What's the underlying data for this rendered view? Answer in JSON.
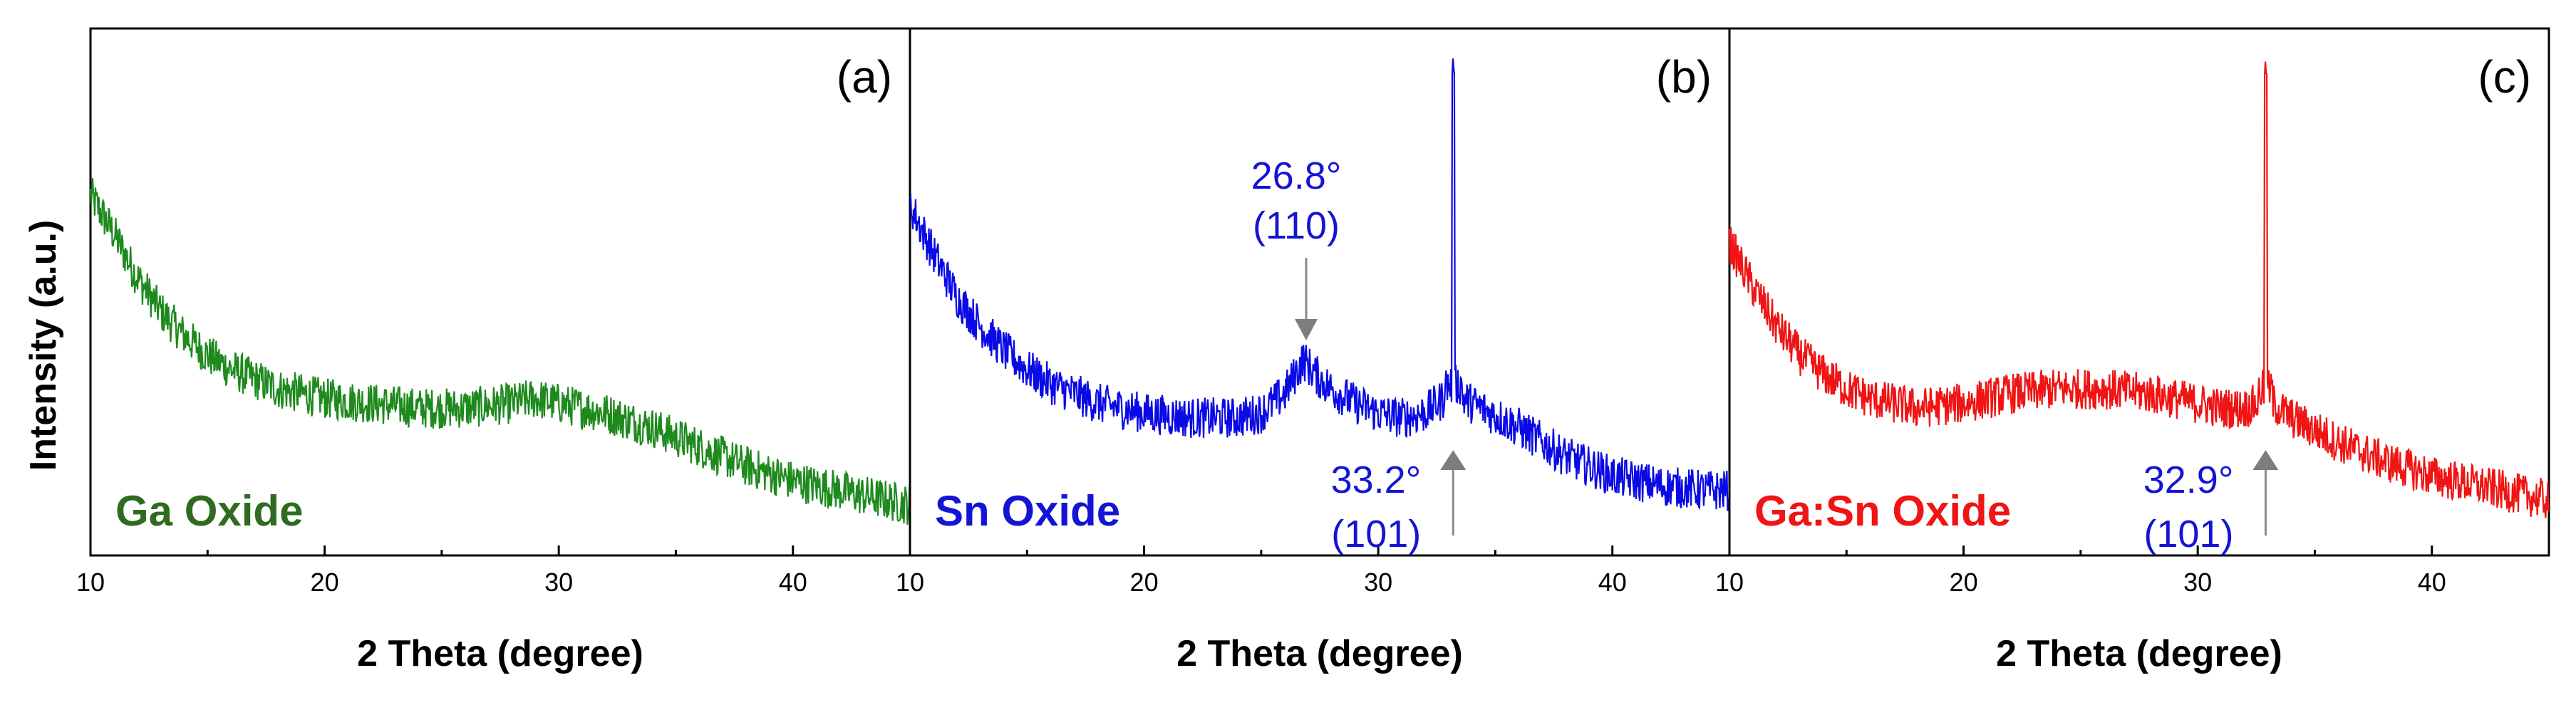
{
  "ylabel": "Intensity (a.u.)",
  "xlabel": "2 Theta (degree)",
  "chart_data": [
    {
      "type": "line",
      "panel": "(a)",
      "sample": "Ga Oxide",
      "color": "#1e8a1e",
      "label_color": "#2e6b1f",
      "xlabel": "2 Theta (degree)",
      "ylabel": "Intensity (a.u.)",
      "xlim": [
        10,
        45
      ],
      "xticks": [
        10,
        20,
        30,
        40
      ],
      "xtick_labels": [
        "10",
        "20",
        "30",
        "40"
      ],
      "ylim": [
        0,
        1
      ],
      "yticks": "none",
      "grid": false,
      "series": [
        {
          "x": [
            10,
            11,
            12,
            13,
            14,
            15,
            16,
            17,
            18,
            19,
            20,
            22,
            24,
            26,
            28,
            29,
            30,
            32,
            34,
            36,
            38,
            40,
            42,
            44,
            45
          ],
          "y": [
            0.7,
            0.62,
            0.53,
            0.46,
            0.41,
            0.37,
            0.34,
            0.32,
            0.3,
            0.29,
            0.28,
            0.27,
            0.26,
            0.26,
            0.27,
            0.28,
            0.27,
            0.25,
            0.22,
            0.18,
            0.14,
            0.11,
            0.09,
            0.07,
            0.06
          ]
        }
      ],
      "annotations": []
    },
    {
      "type": "line",
      "panel": "(b)",
      "sample": "Sn Oxide",
      "color": "#0a0ae6",
      "label_color": "#1414d4",
      "xlabel": "2 Theta (degree)",
      "ylabel": "",
      "xlim": [
        10,
        45
      ],
      "xticks": [
        10,
        20,
        30,
        40
      ],
      "xtick_labels": [
        "10",
        "20",
        "30",
        "40"
      ],
      "ylim": [
        0,
        1
      ],
      "grid": false,
      "series": [
        {
          "x": [
            10,
            11,
            12,
            13,
            14,
            15,
            16,
            17,
            18,
            20,
            22,
            24,
            25,
            26,
            26.8,
            27.5,
            28,
            29,
            30,
            31,
            32,
            32.8,
            33.2,
            33.6,
            34,
            36,
            38,
            40,
            42,
            44,
            45
          ],
          "y": [
            0.68,
            0.58,
            0.49,
            0.43,
            0.38,
            0.34,
            0.31,
            0.29,
            0.27,
            0.25,
            0.24,
            0.24,
            0.25,
            0.29,
            0.36,
            0.32,
            0.3,
            0.27,
            0.25,
            0.24,
            0.25,
            0.28,
            1.0,
            0.28,
            0.27,
            0.22,
            0.16,
            0.12,
            0.1,
            0.09,
            0.09
          ]
        }
      ],
      "annotations": [
        {
          "angle": "26.8°",
          "plane": "(110)",
          "x": 26.8,
          "arrow": "down"
        },
        {
          "angle": "33.2°",
          "plane": "(101)",
          "x": 33.2,
          "arrow": "up"
        }
      ]
    },
    {
      "type": "line",
      "panel": "(c)",
      "sample": "Ga:Sn Oxide",
      "color": "#f01414",
      "label_color": "#f01414",
      "xlabel": "2 Theta (degree)",
      "ylabel": "",
      "xlim": [
        10,
        45
      ],
      "xticks": [
        10,
        20,
        30,
        40
      ],
      "xtick_labels": [
        "10",
        "20",
        "30",
        "40"
      ],
      "ylim": [
        0,
        1
      ],
      "grid": false,
      "series": [
        {
          "x": [
            10,
            11,
            12,
            13,
            14,
            15,
            16,
            17,
            18,
            20,
            22,
            24,
            26,
            28,
            30,
            31,
            32,
            32.6,
            32.9,
            33.2,
            34,
            36,
            38,
            40,
            42,
            44,
            45
          ],
          "y": [
            0.6,
            0.51,
            0.43,
            0.37,
            0.33,
            0.3,
            0.28,
            0.27,
            0.26,
            0.27,
            0.29,
            0.3,
            0.3,
            0.29,
            0.27,
            0.26,
            0.26,
            0.27,
            1.0,
            0.27,
            0.24,
            0.19,
            0.15,
            0.12,
            0.1,
            0.08,
            0.07
          ]
        }
      ],
      "annotations": [
        {
          "angle": "32.9°",
          "plane": "(101)",
          "x": 32.9,
          "arrow": "up"
        }
      ]
    }
  ]
}
